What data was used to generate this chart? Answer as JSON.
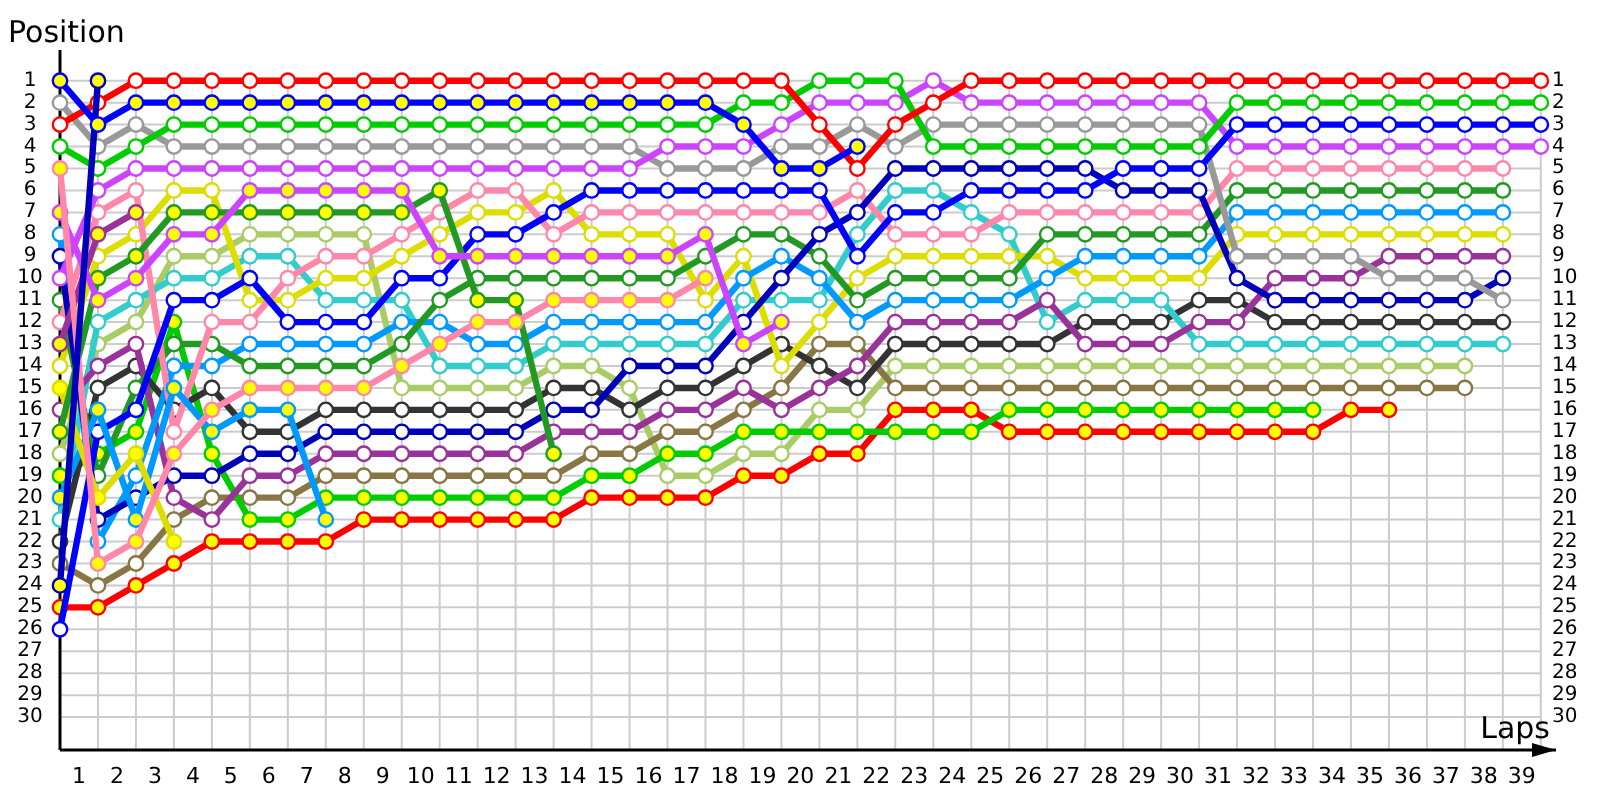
{
  "chart_data": {
    "type": "line",
    "xlabel": "Laps",
    "ylabel": "Position",
    "grid": true,
    "marker": "circle",
    "line_style": "solid",
    "x": [
      0,
      1,
      2,
      3,
      4,
      5,
      6,
      7,
      8,
      9,
      10,
      11,
      12,
      13,
      14,
      15,
      16,
      17,
      18,
      19,
      20,
      21,
      22,
      23,
      24,
      25,
      26,
      27,
      28,
      29,
      30,
      31,
      32,
      33,
      34,
      35,
      36,
      37,
      38,
      39
    ],
    "xlim": [
      0,
      39.4
    ],
    "xticks": [
      {
        "value": 0,
        "label": null
      },
      {
        "value": 0.5,
        "label": "1"
      },
      {
        "value": 1,
        "label": null
      },
      {
        "value": 1.5,
        "label": "2"
      },
      {
        "value": 2,
        "label": null
      },
      {
        "value": 2.5,
        "label": "3"
      },
      {
        "value": 3,
        "label": null
      },
      {
        "value": 3.5,
        "label": "4"
      },
      {
        "value": 4,
        "label": null
      },
      {
        "value": 4.5,
        "label": "5"
      },
      {
        "value": 5,
        "label": null
      },
      {
        "value": 5.5,
        "label": "6"
      },
      {
        "value": 6,
        "label": null
      },
      {
        "value": 6.5,
        "label": "7"
      },
      {
        "value": 7,
        "label": null
      },
      {
        "value": 7.5,
        "label": "8"
      },
      {
        "value": 8,
        "label": null
      },
      {
        "value": 8.5,
        "label": "9"
      },
      {
        "value": 9,
        "label": null
      },
      {
        "value": 9.5,
        "label": "10"
      },
      {
        "value": 10,
        "label": null
      },
      {
        "value": 10.5,
        "label": "11"
      },
      {
        "value": 11,
        "label": null
      },
      {
        "value": 11.5,
        "label": "12"
      },
      {
        "value": 12,
        "label": null
      },
      {
        "value": 12.5,
        "label": "13"
      },
      {
        "value": 13,
        "label": null
      },
      {
        "value": 13.5,
        "label": "14"
      },
      {
        "value": 14,
        "label": null
      },
      {
        "value": 14.5,
        "label": "15"
      },
      {
        "value": 15,
        "label": null
      },
      {
        "value": 15.5,
        "label": "16"
      },
      {
        "value": 16,
        "label": null
      },
      {
        "value": 16.5,
        "label": "17"
      },
      {
        "value": 17,
        "label": null
      },
      {
        "value": 17.5,
        "label": "18"
      },
      {
        "value": 18,
        "label": null
      },
      {
        "value": 18.5,
        "label": "19"
      },
      {
        "value": 19,
        "label": null
      },
      {
        "value": 19.5,
        "label": "20"
      },
      {
        "value": 20,
        "label": null
      },
      {
        "value": 20.5,
        "label": "21"
      },
      {
        "value": 21,
        "label": null
      },
      {
        "value": 21.5,
        "label": "22"
      },
      {
        "value": 22,
        "label": null
      },
      {
        "value": 22.5,
        "label": "23"
      },
      {
        "value": 23,
        "label": null
      },
      {
        "value": 23.5,
        "label": "24"
      },
      {
        "value": 24,
        "label": null
      },
      {
        "value": 24.5,
        "label": "25"
      },
      {
        "value": 25,
        "label": null
      },
      {
        "value": 25.5,
        "label": "26"
      },
      {
        "value": 26,
        "label": null
      },
      {
        "value": 26.5,
        "label": "27"
      },
      {
        "value": 27,
        "label": null
      },
      {
        "value": 27.5,
        "label": "28"
      },
      {
        "value": 28,
        "label": null
      },
      {
        "value": 28.5,
        "label": "29"
      },
      {
        "value": 29,
        "label": null
      },
      {
        "value": 29.5,
        "label": "30"
      },
      {
        "value": 30,
        "label": null
      },
      {
        "value": 30.5,
        "label": "31"
      },
      {
        "value": 31,
        "label": null
      },
      {
        "value": 31.5,
        "label": "32"
      },
      {
        "value": 32,
        "label": null
      },
      {
        "value": 32.5,
        "label": "33"
      },
      {
        "value": 33,
        "label": null
      },
      {
        "value": 33.5,
        "label": "34"
      },
      {
        "value": 34,
        "label": null
      },
      {
        "value": 34.5,
        "label": "35"
      },
      {
        "value": 35,
        "label": null
      },
      {
        "value": 35.5,
        "label": "36"
      },
      {
        "value": 36,
        "label": null
      },
      {
        "value": 36.5,
        "label": "37"
      },
      {
        "value": 37,
        "label": null
      },
      {
        "value": 37.5,
        "label": "38"
      },
      {
        "value": 38,
        "label": null
      },
      {
        "value": 38.5,
        "label": "39"
      },
      {
        "value": 39,
        "label": null
      }
    ],
    "ylim": [
      31.5,
      -0.4
    ],
    "yticks": [
      1,
      2,
      3,
      4,
      5,
      6,
      7,
      8,
      9,
      10,
      11,
      12,
      13,
      14,
      15,
      16,
      17,
      18,
      19,
      20,
      21,
      22,
      23,
      24,
      25,
      26,
      27,
      28,
      29,
      30
    ],
    "y2lim": [
      31.5,
      -0.4
    ],
    "y2ticks": [
      1,
      2,
      3,
      4,
      5,
      6,
      7,
      8,
      9,
      10,
      11,
      12,
      13,
      14,
      15,
      16,
      17,
      18,
      19,
      20,
      21,
      22,
      23,
      24,
      25,
      26,
      27,
      28,
      29,
      30
    ],
    "series": [
      {
        "color": "#aacc66",
        "values": [
          18,
          13,
          12,
          9,
          9,
          8,
          8,
          8,
          8,
          15,
          15,
          15,
          15,
          14,
          14,
          15,
          19,
          19,
          18,
          18,
          16,
          16,
          14,
          14,
          14,
          14,
          14,
          14,
          14,
          14,
          14,
          14,
          14,
          14,
          14,
          14,
          14,
          14,
          null,
          null
        ]
      },
      {
        "color": "#887744",
        "values": [
          23,
          24,
          23,
          21,
          20,
          20,
          20,
          19,
          19,
          19,
          19,
          19,
          19,
          19,
          18,
          18,
          17,
          17,
          16,
          15,
          13,
          13,
          15,
          15,
          15,
          15,
          15,
          15,
          15,
          15,
          15,
          15,
          15,
          15,
          15,
          15,
          15,
          15,
          null,
          null
        ]
      },
      {
        "color": "#ff0000",
        "values": [
          25,
          25,
          24,
          23,
          22,
          22,
          22,
          22,
          21,
          21,
          21,
          21,
          21,
          21,
          20,
          20,
          20,
          20,
          19,
          19,
          18,
          18,
          16,
          16,
          16,
          17,
          17,
          17,
          17,
          17,
          17,
          17,
          17,
          17,
          16,
          16,
          null,
          null,
          null,
          null
        ],
        "colors": [
          "#ffff00",
          "#ffff00",
          "#ffff00",
          "#ffff00",
          "#ffff00",
          "#ffff00",
          "#ffff00",
          "#ffff00",
          "#ffff00",
          "#ffff00",
          "#ffff00",
          "#ffff00",
          "#ffff00",
          "#ffff00",
          "#ffff00",
          "#ffff00",
          "#ffff00",
          "#ffff00",
          "#ffff00",
          "#ffff00",
          "#ffff00",
          "#ffff00",
          "#ffff00",
          "#ffff00",
          "#ffff00",
          "#ffff00",
          "#ffff00",
          "#ffff00",
          "#ffff00",
          "#ffff00",
          "#ffff00",
          "#ffff00",
          "#ffff00",
          "#ffff00",
          "#ffff00",
          "#ffff00",
          null,
          null,
          null,
          null
        ]
      },
      {
        "color": "#00cc00",
        "values": [
          19,
          18,
          17,
          12,
          18,
          21,
          21,
          20,
          20,
          20,
          20,
          20,
          20,
          20,
          19,
          19,
          18,
          18,
          17,
          17,
          17,
          17,
          17,
          17,
          17,
          16,
          16,
          16,
          16,
          16,
          16,
          16,
          16,
          16,
          null,
          null,
          null,
          null,
          null,
          null
        ],
        "colors": [
          "#ffff00",
          "#ffff00",
          "#ffff00",
          "#ffff00",
          "#ffff00",
          "#ffff00",
          "#ffff00",
          "#ffff00",
          "#ffff00",
          "#ffff00",
          "#ffff00",
          "#ffff00",
          "#ffff00",
          "#ffff00",
          "#ffff00",
          "#ffff00",
          "#ffff00",
          "#ffff00",
          "#ffff00",
          "#ffff00",
          "#ffff00",
          "#ffff00",
          "#ffff00",
          "#ffff00",
          "#ffff00",
          "#ffff00",
          "#ffff00",
          "#ffff00",
          "#ffff00",
          "#ffff00",
          "#ffff00",
          "#ffff00",
          "#ffff00",
          "#ffff00",
          null,
          null,
          null,
          null,
          null,
          null
        ]
      },
      {
        "color": "#333333",
        "values": [
          22,
          15,
          14,
          16,
          15,
          17,
          17,
          16,
          16,
          16,
          16,
          16,
          16,
          15,
          15,
          16,
          15,
          15,
          14,
          13,
          14,
          15,
          13,
          13,
          13,
          13,
          13,
          12,
          12,
          12,
          11,
          11,
          12,
          12,
          12,
          12,
          12,
          12,
          12,
          null
        ]
      },
      {
        "color": "#33cccc",
        "values": [
          21,
          12,
          11,
          10,
          10,
          9,
          9,
          11,
          11,
          11,
          14,
          14,
          14,
          13,
          13,
          13,
          13,
          13,
          11,
          11,
          11,
          8,
          6,
          6,
          7,
          8,
          12,
          11,
          11,
          11,
          13,
          13,
          13,
          13,
          13,
          13,
          13,
          13,
          13,
          null
        ]
      },
      {
        "color": "#993399",
        "values": [
          16,
          14,
          13,
          20,
          21,
          19,
          19,
          18,
          18,
          18,
          18,
          18,
          18,
          17,
          17,
          17,
          16,
          16,
          15,
          16,
          15,
          14,
          12,
          12,
          12,
          12,
          11,
          13,
          13,
          13,
          12,
          12,
          10,
          10,
          10,
          9,
          9,
          9,
          9,
          null
        ]
      },
      {
        "color": "#dddd00",
        "values": [
          14,
          9,
          8,
          6,
          6,
          11,
          11,
          10,
          10,
          9,
          8,
          7,
          7,
          6,
          8,
          8,
          8,
          11,
          9,
          14,
          12,
          10,
          9,
          9,
          9,
          9,
          9,
          10,
          10,
          10,
          10,
          8,
          8,
          8,
          8,
          8,
          8,
          8,
          8,
          null
        ]
      },
      {
        "color": "#0099ff",
        "values": [
          8,
          22,
          19,
          14,
          14,
          13,
          13,
          13,
          13,
          12,
          12,
          13,
          13,
          12,
          12,
          12,
          12,
          12,
          10,
          9,
          10,
          12,
          11,
          11,
          11,
          11,
          10,
          9,
          9,
          9,
          9,
          7,
          7,
          7,
          7,
          7,
          7,
          7,
          7,
          null
        ]
      },
      {
        "color": "#229922",
        "values": [
          11,
          19,
          15,
          13,
          13,
          14,
          14,
          14,
          14,
          13,
          11,
          10,
          10,
          10,
          10,
          10,
          10,
          9,
          8,
          8,
          9,
          11,
          10,
          10,
          10,
          10,
          8,
          8,
          8,
          8,
          8,
          6,
          6,
          6,
          6,
          6,
          6,
          6,
          6,
          null
        ]
      },
      {
        "color": "#ff88aa",
        "values": [
          12,
          7,
          6,
          17,
          12,
          12,
          10,
          9,
          9,
          8,
          7,
          6,
          6,
          8,
          7,
          7,
          7,
          7,
          7,
          7,
          7,
          6,
          8,
          8,
          8,
          7,
          7,
          7,
          7,
          7,
          7,
          5,
          5,
          5,
          5,
          5,
          5,
          5,
          5,
          null
        ]
      },
      {
        "color": "#0000bb",
        "values": [
          9,
          21,
          20,
          19,
          19,
          18,
          18,
          17,
          17,
          17,
          17,
          17,
          17,
          16,
          16,
          14,
          14,
          14,
          12,
          10,
          8,
          7,
          5,
          5,
          5,
          5,
          5,
          5,
          6,
          6,
          6,
          10,
          11,
          11,
          11,
          11,
          11,
          11,
          10,
          null
        ]
      },
      {
        "color": "#999999",
        "values": [
          2,
          4,
          3,
          4,
          4,
          4,
          4,
          4,
          4,
          4,
          4,
          4,
          4,
          4,
          4,
          4,
          5,
          5,
          5,
          4,
          4,
          3,
          4,
          3,
          3,
          3,
          3,
          3,
          3,
          3,
          3,
          9,
          9,
          9,
          9,
          10,
          10,
          10,
          11,
          null
        ]
      },
      {
        "color": "#cc44ff",
        "values": [
          10,
          6,
          5,
          5,
          5,
          5,
          5,
          5,
          5,
          5,
          5,
          5,
          5,
          5,
          5,
          5,
          4,
          4,
          4,
          3,
          2,
          2,
          2,
          1,
          2,
          2,
          2,
          2,
          2,
          2,
          2,
          4,
          4,
          4,
          4,
          4,
          4,
          4,
          4,
          4
        ]
      },
      {
        "color": "#0000ff",
        "values": [
          26,
          17,
          16,
          11,
          11,
          10,
          12,
          12,
          12,
          10,
          10,
          8,
          8,
          7,
          6,
          6,
          6,
          6,
          6,
          6,
          6,
          9,
          7,
          7,
          6,
          6,
          6,
          6,
          5,
          5,
          5,
          3,
          3,
          3,
          3,
          3,
          3,
          3,
          3,
          3
        ]
      },
      {
        "color": "#00cc00",
        "values": [
          4,
          5,
          4,
          3,
          3,
          3,
          3,
          3,
          3,
          3,
          3,
          3,
          3,
          3,
          3,
          3,
          3,
          3,
          2,
          2,
          1,
          1,
          1,
          4,
          4,
          4,
          4,
          4,
          4,
          4,
          4,
          2,
          2,
          2,
          2,
          2,
          2,
          2,
          2,
          2
        ]
      },
      {
        "color": "#ff0000",
        "values": [
          3,
          2,
          1,
          1,
          1,
          1,
          1,
          1,
          1,
          1,
          1,
          1,
          1,
          1,
          1,
          1,
          1,
          1,
          1,
          1,
          3,
          5,
          3,
          2,
          1,
          1,
          1,
          1,
          1,
          1,
          1,
          1,
          1,
          1,
          1,
          1,
          1,
          1,
          1,
          1
        ]
      },
      {
        "color": "#0099ff",
        "values": [
          20,
          16,
          21,
          15,
          17,
          16,
          16,
          21,
          null,
          null,
          null,
          null,
          null,
          null,
          null,
          null,
          null,
          null,
          null,
          null,
          null,
          null,
          null,
          null,
          null,
          null,
          null,
          null,
          null,
          null,
          null,
          null,
          null,
          null,
          null,
          null,
          null,
          null,
          null,
          null
        ],
        "colors": [
          "#ffff00",
          "#ffff00",
          "#ffff00",
          "#ffff00",
          "#ffff00",
          "#ffff00",
          "#ffff00",
          "#ffff00",
          null,
          null,
          null,
          null,
          null,
          null,
          null,
          null,
          null,
          null,
          null,
          null,
          null,
          null,
          null,
          null,
          null,
          null,
          null,
          null,
          null,
          null,
          null,
          null,
          null,
          null,
          null,
          null,
          null,
          null,
          null,
          null
        ]
      },
      {
        "color": "#dddd00",
        "values": [
          15,
          20,
          18,
          22,
          null,
          null,
          null,
          null,
          null,
          null,
          null,
          null,
          null,
          null,
          null,
          null,
          null,
          null,
          null,
          null,
          null,
          null,
          null,
          null,
          null,
          null,
          null,
          null,
          null,
          null,
          null,
          null,
          null,
          null,
          null,
          null,
          null,
          null,
          null,
          null
        ],
        "colors": [
          "#ffff00",
          "#ffff00",
          "#ffff00",
          "#ffff00",
          null,
          null,
          null,
          null,
          null,
          null,
          null,
          null,
          null,
          null,
          null,
          null,
          null,
          null,
          null,
          null,
          null,
          null,
          null,
          null,
          null,
          null,
          null,
          null,
          null,
          null,
          null,
          null,
          null,
          null,
          null,
          null,
          null,
          null,
          null,
          null
        ]
      },
      {
        "color": "#993399",
        "values": [
          13,
          8,
          7,
          null,
          null,
          null,
          null,
          null,
          null,
          null,
          null,
          null,
          null,
          null,
          null,
          null,
          null,
          null,
          null,
          null,
          null,
          null,
          null,
          null,
          null,
          null,
          null,
          null,
          null,
          null,
          null,
          null,
          null,
          null,
          null,
          null,
          null,
          null,
          null,
          null
        ],
        "colors": [
          "#ffff00",
          "#ffff00",
          "#ffff00",
          null,
          null,
          null,
          null,
          null,
          null,
          null,
          null,
          null,
          null,
          null,
          null,
          null,
          null,
          null,
          null,
          null,
          null,
          null,
          null,
          null,
          null,
          null,
          null,
          null,
          null,
          null,
          null,
          null,
          null,
          null,
          null,
          null,
          null,
          null,
          null,
          null
        ]
      },
      {
        "color": "#229922",
        "values": [
          17,
          10,
          9,
          7,
          7,
          7,
          7,
          7,
          7,
          7,
          6,
          11,
          11,
          18,
          null,
          null,
          null,
          null,
          null,
          null,
          null,
          null,
          null,
          null,
          null,
          null,
          null,
          null,
          null,
          null,
          null,
          null,
          null,
          null,
          null,
          null,
          null,
          null,
          null,
          null
        ],
        "colors": [
          "#ffff00",
          "#ffff00",
          "#ffff00",
          "#ffff00",
          "#ffff00",
          "#ffff00",
          "#ffff00",
          "#ffff00",
          "#ffff00",
          "#ffff00",
          "#ffff00",
          "#ffff00",
          "#ffff00",
          "#ffff00",
          null,
          null,
          null,
          null,
          null,
          null,
          null,
          null,
          null,
          null,
          null,
          null,
          null,
          null,
          null,
          null,
          null,
          null,
          null,
          null,
          null,
          null,
          null,
          null,
          null,
          null
        ]
      },
      {
        "color": "#cc44ff",
        "values": [
          7,
          11,
          10,
          8,
          8,
          6,
          6,
          6,
          6,
          6,
          9,
          9,
          9,
          9,
          9,
          9,
          9,
          8,
          13,
          12,
          null,
          null,
          null,
          null,
          null,
          null,
          null,
          null,
          null,
          null,
          null,
          null,
          null,
          null,
          null,
          null,
          null,
          null,
          null,
          null
        ],
        "colors": [
          "#ffff00",
          "#ffff00",
          "#ffff00",
          "#ffff00",
          "#ffff00",
          "#ffff00",
          "#ffff00",
          "#ffff00",
          "#ffff00",
          "#ffff00",
          "#ffff00",
          "#ffff00",
          "#ffff00",
          "#ffff00",
          "#ffff00",
          "#ffff00",
          "#ffff00",
          "#ffff00",
          "#ffff00",
          "#ffff00",
          null,
          null,
          null,
          null,
          null,
          null,
          null,
          null,
          null,
          null,
          null,
          null,
          null,
          null,
          null,
          null,
          null,
          null,
          null,
          null
        ]
      },
      {
        "color": "#ff88aa",
        "values": [
          5,
          23,
          22,
          18,
          16,
          15,
          15,
          15,
          15,
          14,
          13,
          12,
          12,
          11,
          11,
          11,
          11,
          10,
          null,
          null,
          null,
          null,
          null,
          null,
          null,
          null,
          null,
          null,
          null,
          null,
          null,
          null,
          null,
          null,
          null,
          null,
          null,
          null,
          null,
          null
        ],
        "colors": [
          "#ffff00",
          "#ffff00",
          "#ffff00",
          "#ffff00",
          "#ffff00",
          "#ffff00",
          "#ffff00",
          "#ffff00",
          "#ffff00",
          "#ffff00",
          "#ffff00",
          "#ffff00",
          "#ffff00",
          "#ffff00",
          "#ffff00",
          "#ffff00",
          "#ffff00",
          "#ffff00",
          null,
          null,
          null,
          null,
          null,
          null,
          null,
          null,
          null,
          null,
          null,
          null,
          null,
          null,
          null,
          null,
          null,
          null,
          null,
          null,
          null,
          null
        ]
      },
      {
        "color": "#0000bb",
        "values": [
          24,
          1,
          null,
          null,
          null,
          null,
          null,
          null,
          null,
          null,
          null,
          null,
          null,
          null,
          null,
          null,
          null,
          null,
          null,
          null,
          null,
          null,
          null,
          null,
          null,
          null,
          null,
          null,
          null,
          null,
          null,
          null,
          null,
          null,
          null,
          null,
          null,
          null,
          null,
          null
        ],
        "colors": [
          "#ffff00",
          "#ffff00",
          null,
          null,
          null,
          null,
          null,
          null,
          null,
          null,
          null,
          null,
          null,
          null,
          null,
          null,
          null,
          null,
          null,
          null,
          null,
          null,
          null,
          null,
          null,
          null,
          null,
          null,
          null,
          null,
          null,
          null,
          null,
          null,
          null,
          null,
          null,
          null,
          null,
          null
        ]
      },
      {
        "color": "#0000ff",
        "values": [
          1,
          3,
          2,
          2,
          2,
          2,
          2,
          2,
          2,
          2,
          2,
          2,
          2,
          2,
          2,
          2,
          2,
          2,
          3,
          5,
          5,
          4,
          null,
          null,
          null,
          null,
          null,
          null,
          null,
          null,
          null,
          null,
          null,
          null,
          null,
          null,
          null,
          null,
          null,
          null
        ],
        "colors": [
          "#ffff00",
          "#ffff00",
          "#ffff00",
          "#ffff00",
          "#ffff00",
          "#ffff00",
          "#ffff00",
          "#ffff00",
          "#ffff00",
          "#ffff00",
          "#ffff00",
          "#ffff00",
          "#ffff00",
          "#ffff00",
          "#ffff00",
          "#ffff00",
          "#ffff00",
          "#ffff00",
          "#ffff00",
          "#ffff00",
          "#ffff00",
          "#ffff00",
          null,
          null,
          null,
          null,
          null,
          null,
          null,
          null,
          null,
          null,
          null,
          null,
          null,
          null,
          null,
          null,
          null,
          null
        ]
      }
    ]
  }
}
